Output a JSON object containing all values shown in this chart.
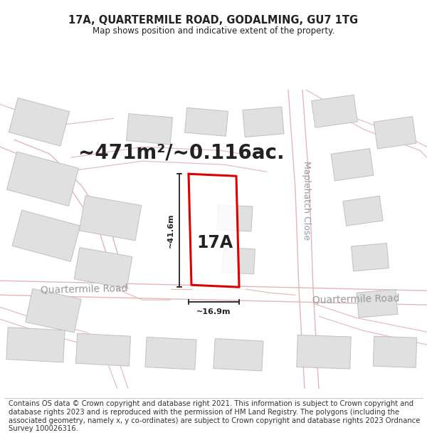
{
  "title": "17A, QUARTERMILE ROAD, GODALMING, GU7 1TG",
  "subtitle": "Map shows position and indicative extent of the property.",
  "area_text": "~471m²/~0.116ac.",
  "label_17a": "17A",
  "dim_height": "~41.6m",
  "dim_width": "~16.9m",
  "road_label1": "Quartermile Road",
  "road_label2": "Quartermile Road",
  "close_label": "Maplehatch Close",
  "footer": "Contains OS data © Crown copyright and database right 2021. This information is subject to Crown copyright and database rights 2023 and is reproduced with the permission of HM Land Registry. The polygons (including the associated geometry, namely x, y co-ordinates) are subject to Crown copyright and database rights 2023 Ordnance Survey 100026316.",
  "bg_color": "#ffffff",
  "map_bg": "#f0f0f0",
  "road_color": "#e8b4b4",
  "building_color": "#e0e0e0",
  "building_edge": "#c0c0c0",
  "highlight_color": "#dd0000",
  "dim_color": "#222222",
  "text_color": "#222222",
  "road_text_color": "#999999",
  "title_fontsize": 10.5,
  "subtitle_fontsize": 8.5,
  "area_fontsize": 20,
  "label_fontsize": 17,
  "dim_fontsize": 8,
  "road_fontsize": 10,
  "close_fontsize": 9,
  "footer_fontsize": 7.2
}
